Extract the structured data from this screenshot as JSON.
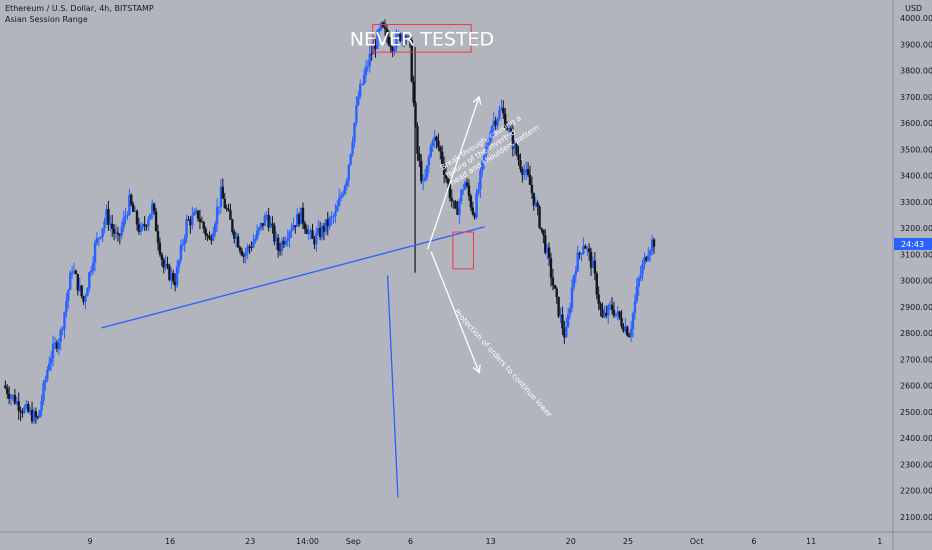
{
  "header": {
    "symbol_line": "Ethereum / U.S. Dollar, 4h, BITSTAMP",
    "indicator_line": "Asian Session Range"
  },
  "price_axis": {
    "currency_label": "USD",
    "current_price_badge": "24:43",
    "badge_color": "#2962ff"
  },
  "chart_data": {
    "type": "candlestick",
    "title": "",
    "ylabel": "",
    "xlabel": "",
    "y_range": [
      2060,
      4050
    ],
    "y_ticks": [
      2100,
      2200,
      2300,
      2400,
      2500,
      2600,
      2700,
      2800,
      2900,
      3000,
      3100,
      3200,
      3300,
      3400,
      3500,
      3600,
      3700,
      3800,
      3900,
      4000
    ],
    "y_tick_labels": [
      "2100.00",
      "2200.00",
      "2300.00",
      "2400.00",
      "2500.00",
      "2600.00",
      "2700.00",
      "2800.00",
      "2900.00",
      "3000.00",
      "3100.00",
      "3200.00",
      "3300.00",
      "3400.00",
      "3500.00",
      "3600.00",
      "3700.00",
      "3800.00",
      "3900.00",
      "4000.00"
    ],
    "x_range_days": [
      1.5,
      43.5
    ],
    "x_ticks": [
      {
        "label": "9",
        "day": 9
      },
      {
        "label": "16",
        "day": 16
      },
      {
        "label": "23",
        "day": 23
      },
      {
        "label": "14:00",
        "day": 28
      },
      {
        "label": "Sep",
        "day": 32
      },
      {
        "label": "6",
        "day": 37
      },
      {
        "label": "13",
        "day": 44
      },
      {
        "label": "20",
        "day": 51
      },
      {
        "label": "25",
        "day": 56
      },
      {
        "label": "Oct",
        "day": 62
      },
      {
        "label": "6",
        "day": 67
      },
      {
        "label": "11",
        "day": 72
      },
      {
        "label": "1",
        "day": 78
      }
    ],
    "up_color": "#2962ff",
    "down_color": "#131722",
    "price_path": [
      [
        1.5,
        2600
      ],
      [
        3.0,
        2520
      ],
      [
        4.5,
        2470
      ],
      [
        5.5,
        2700
      ],
      [
        6.5,
        2800
      ],
      [
        7.5,
        3050
      ],
      [
        8.5,
        2920
      ],
      [
        9.5,
        3130
      ],
      [
        10.5,
        3250
      ],
      [
        11.5,
        3150
      ],
      [
        12.5,
        3300
      ],
      [
        13.5,
        3180
      ],
      [
        14.5,
        3280
      ],
      [
        15.5,
        3050
      ],
      [
        16.5,
        3000
      ],
      [
        17.5,
        3220
      ],
      [
        18.5,
        3250
      ],
      [
        19.5,
        3150
      ],
      [
        20.5,
        3330
      ],
      [
        21.5,
        3200
      ],
      [
        22.5,
        3100
      ],
      [
        23.5,
        3160
      ],
      [
        24.5,
        3250
      ],
      [
        25.5,
        3120
      ],
      [
        26.5,
        3200
      ],
      [
        27.5,
        3250
      ],
      [
        28.5,
        3150
      ],
      [
        29.5,
        3200
      ],
      [
        30.5,
        3250
      ],
      [
        31.5,
        3400
      ],
      [
        32.5,
        3700
      ],
      [
        33.5,
        3850
      ],
      [
        34.5,
        3960
      ],
      [
        35.5,
        3900
      ],
      [
        36.5,
        3950
      ],
      [
        37.0,
        3890
      ],
      [
        37.6,
        3500
      ],
      [
        38.2,
        3350
      ],
      [
        39.0,
        3550
      ],
      [
        39.6,
        3500
      ],
      [
        40.4,
        3350
      ],
      [
        41.0,
        3250
      ],
      [
        41.8,
        3380
      ],
      [
        42.6,
        3250
      ],
      [
        43.4,
        3450
      ],
      [
        44.2,
        3600
      ],
      [
        45.0,
        3650
      ],
      [
        45.8,
        3550
      ],
      [
        46.6,
        3450
      ],
      [
        47.4,
        3380
      ],
      [
        48.2,
        3250
      ],
      [
        49.0,
        3100
      ],
      [
        49.8,
        2920
      ],
      [
        50.6,
        2780
      ],
      [
        51.4,
        3050
      ],
      [
        52.2,
        3150
      ],
      [
        53.0,
        3050
      ],
      [
        53.8,
        2850
      ],
      [
        54.6,
        2900
      ],
      [
        55.4,
        2850
      ],
      [
        56.2,
        2800
      ],
      [
        57.0,
        3000
      ],
      [
        57.8,
        3120
      ],
      [
        58.2,
        3150
      ]
    ],
    "lines": [
      {
        "name": "neckline",
        "from": [
          10.0,
          2820
        ],
        "to": [
          43.5,
          3205
        ],
        "color": "#2962ff"
      },
      {
        "name": "head-drop",
        "from": [
          35.0,
          3020
        ],
        "to": [
          35.9,
          2175
        ],
        "color": "#2962ff"
      },
      {
        "name": "bullish-target",
        "from": [
          38.5,
          3120
        ],
        "to": [
          43.0,
          3700
        ],
        "color": "#ffffff"
      },
      {
        "name": "bearish-target",
        "from": [
          38.8,
          3110
        ],
        "to": [
          43.0,
          2650
        ],
        "color": "#ffffff"
      }
    ],
    "boxes": [
      {
        "name": "never-tested-box",
        "from": [
          33.7,
          3975
        ],
        "to": [
          42.3,
          3870
        ],
        "color": "#f23645"
      },
      {
        "name": "retest-box",
        "from": [
          40.7,
          3185
        ],
        "to": [
          42.5,
          3045
        ],
        "color": "#f23645"
      }
    ],
    "annotations": [
      {
        "name": "never-tested",
        "text": "NEVER TESTED",
        "at": [
          38.0,
          3922
        ],
        "color": "#ffffff",
        "rotate": 0
      },
      {
        "name": "break-through-note",
        "text": [
          "Break through, causing a",
          "failure of the inverted",
          "head and shoulders pattern"
        ],
        "at": [
          39.8,
          3420
        ],
        "color": "#ffffff",
        "rotate": -33
      },
      {
        "name": "protection-note",
        "text": "Protection of orders to continue lower",
        "at": [
          40.8,
          2880
        ],
        "color": "#ffffff",
        "rotate": 48
      }
    ]
  }
}
